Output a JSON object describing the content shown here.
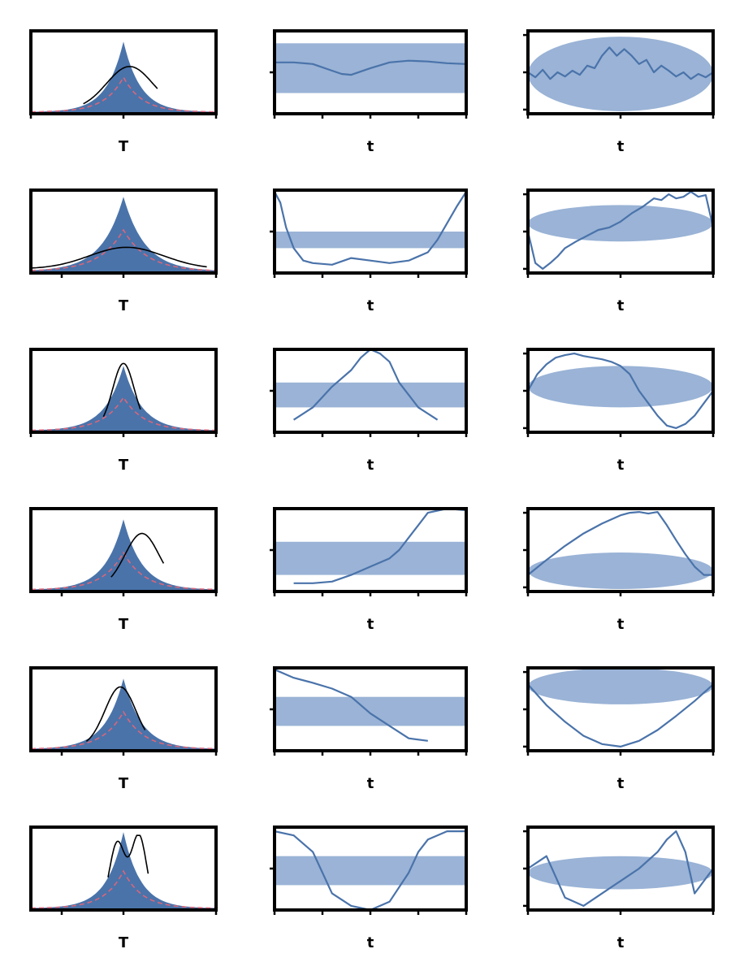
{
  "figure": {
    "row_titles": [
      "",
      "",
      "",
      "",
      "",
      ""
    ],
    "colors": {
      "pdf_fill": "#4a73aa",
      "pdf_curve": "#000000",
      "reference_dashed": "#d9667a",
      "band_fill": "#9ab3d6",
      "trace_line": "#4a73aa",
      "axes": "#000000"
    }
  },
  "chart_data": [
    {
      "type": "area",
      "row": 0,
      "col": 0,
      "xlabel": "T",
      "xlim": [
        -3,
        3
      ],
      "ylim": [
        0,
        1
      ],
      "xticks": [
        -3,
        0,
        3
      ],
      "xtick_labels": [
        "",
        "",
        ""
      ],
      "peak": 0.85,
      "spread": 0.55,
      "ref_peak": 0.42,
      "curve": {
        "center": 0.2,
        "sigma": 0.75,
        "height": 0.52,
        "range": [
          -1.3,
          1.1
        ]
      }
    },
    {
      "type": "line",
      "row": 0,
      "col": 1,
      "xlabel": "t",
      "xlim": [
        0,
        1
      ],
      "ylim": [
        0,
        1
      ],
      "xticks": [
        0,
        0.25,
        0.5,
        0.75,
        1
      ],
      "xtick_labels": [
        "",
        "",
        "",
        "",
        ""
      ],
      "band": [
        0.25,
        0.85
      ],
      "series": [
        {
          "x": [
            0,
            0.1,
            0.2,
            0.3,
            0.35,
            0.4,
            0.5,
            0.6,
            0.7,
            0.8,
            0.9,
            1
          ],
          "y": [
            0.62,
            0.62,
            0.6,
            0.52,
            0.48,
            0.47,
            0.55,
            0.62,
            0.64,
            0.63,
            0.61,
            0.6
          ]
        }
      ]
    },
    {
      "type": "line",
      "row": 0,
      "col": 2,
      "xlabel": "t",
      "xlim": [
        0,
        1
      ],
      "ylim": [
        0,
        1
      ],
      "xticks": [
        0,
        0.5,
        1
      ],
      "xtick_labels": [
        "",
        "",
        ""
      ],
      "band_ellipse": {
        "cx": 0.5,
        "cy": 0.48,
        "rx": 0.5,
        "ry": 0.45
      },
      "series": [
        {
          "x": [
            0,
            0.04,
            0.08,
            0.12,
            0.16,
            0.2,
            0.24,
            0.28,
            0.32,
            0.36,
            0.4,
            0.44,
            0.48,
            0.52,
            0.56,
            0.6,
            0.64,
            0.68,
            0.72,
            0.76,
            0.8,
            0.84,
            0.88,
            0.92,
            0.96,
            1
          ],
          "y": [
            0.5,
            0.44,
            0.53,
            0.42,
            0.5,
            0.45,
            0.52,
            0.47,
            0.58,
            0.55,
            0.7,
            0.8,
            0.7,
            0.78,
            0.7,
            0.6,
            0.65,
            0.5,
            0.58,
            0.52,
            0.45,
            0.5,
            0.42,
            0.48,
            0.44,
            0.5
          ]
        }
      ]
    },
    {
      "type": "area",
      "row": 1,
      "col": 0,
      "xlabel": "T",
      "xlim": [
        -3,
        3
      ],
      "ylim": [
        0,
        1
      ],
      "xticks": [
        -2,
        0,
        3
      ],
      "xtick_labels": [
        "",
        "",
        ""
      ],
      "peak": 0.9,
      "spread": 0.7,
      "ref_peak": 0.5,
      "curve": {
        "center": 0.1,
        "sigma": 1.2,
        "height": 0.26,
        "range": [
          -3,
          2.7
        ]
      }
    },
    {
      "type": "line",
      "row": 1,
      "col": 1,
      "xlabel": "t",
      "xlim": [
        0,
        1
      ],
      "ylim": [
        0,
        1
      ],
      "xticks": [
        0,
        0.25,
        0.5,
        0.75,
        1
      ],
      "xtick_labels": [
        "",
        "",
        "",
        "",
        ""
      ],
      "band": [
        0.3,
        0.5
      ],
      "series": [
        {
          "x": [
            0,
            0.03,
            0.06,
            0.1,
            0.15,
            0.2,
            0.3,
            0.4,
            0.5,
            0.6,
            0.7,
            0.8,
            0.85,
            0.9,
            0.95,
            1
          ],
          "y": [
            0.98,
            0.85,
            0.55,
            0.3,
            0.15,
            0.12,
            0.1,
            0.18,
            0.15,
            0.12,
            0.15,
            0.25,
            0.4,
            0.6,
            0.8,
            0.98
          ]
        }
      ]
    },
    {
      "type": "line",
      "row": 1,
      "col": 2,
      "xlabel": "t",
      "xlim": [
        0,
        1
      ],
      "ylim": [
        0,
        1
      ],
      "xticks": [
        0,
        0.5,
        1
      ],
      "xtick_labels": [
        "",
        "",
        ""
      ],
      "band_ellipse": {
        "cx": 0.5,
        "cy": 0.6,
        "rx": 0.5,
        "ry": 0.22
      },
      "series": [
        {
          "x": [
            0,
            0.04,
            0.08,
            0.12,
            0.16,
            0.2,
            0.26,
            0.32,
            0.38,
            0.44,
            0.5,
            0.56,
            0.62,
            0.68,
            0.72,
            0.76,
            0.8,
            0.84,
            0.88,
            0.92,
            0.96,
            1
          ],
          "y": [
            0.5,
            0.12,
            0.05,
            0.12,
            0.2,
            0.3,
            0.38,
            0.45,
            0.52,
            0.55,
            0.62,
            0.72,
            0.8,
            0.9,
            0.88,
            0.95,
            0.9,
            0.92,
            0.98,
            0.92,
            0.94,
            0.55
          ]
        }
      ]
    },
    {
      "type": "area",
      "row": 2,
      "col": 0,
      "xlabel": "T",
      "xlim": [
        -3,
        3
      ],
      "ylim": [
        0,
        1
      ],
      "xticks": [
        -3,
        0,
        3
      ],
      "xtick_labels": [
        "",
        "",
        ""
      ],
      "peak": 0.78,
      "spread": 0.6,
      "ref_peak": 0.4,
      "curve": {
        "center": 0,
        "sigma": 0.35,
        "height": 0.78,
        "range": [
          -0.65,
          0.55
        ]
      }
    },
    {
      "type": "line",
      "row": 2,
      "col": 1,
      "xlabel": "t",
      "xlim": [
        0,
        1
      ],
      "ylim": [
        0,
        1
      ],
      "xticks": [
        0,
        0.25,
        0.5,
        0.75,
        1
      ],
      "xtick_labels": [
        "",
        "",
        "",
        "",
        ""
      ],
      "band": [
        0.3,
        0.6
      ],
      "series": [
        {
          "x": [
            0.1,
            0.2,
            0.3,
            0.4,
            0.45,
            0.5,
            0.55,
            0.6,
            0.65,
            0.7,
            0.75,
            0.85
          ],
          "y": [
            0.15,
            0.3,
            0.55,
            0.75,
            0.9,
            1,
            0.95,
            0.85,
            0.6,
            0.45,
            0.3,
            0.15
          ]
        }
      ]
    },
    {
      "type": "line",
      "row": 2,
      "col": 2,
      "xlabel": "t",
      "xlim": [
        0,
        1
      ],
      "ylim": [
        0,
        1
      ],
      "xticks": [
        0,
        0.5,
        1
      ],
      "xtick_labels": [
        "",
        "",
        ""
      ],
      "band_ellipse": {
        "cx": 0.5,
        "cy": 0.55,
        "rx": 0.5,
        "ry": 0.25
      },
      "series": [
        {
          "x": [
            0,
            0.05,
            0.1,
            0.15,
            0.2,
            0.25,
            0.3,
            0.35,
            0.4,
            0.45,
            0.5,
            0.55,
            0.6,
            0.65,
            0.7,
            0.75,
            0.8,
            0.85,
            0.9,
            0.95,
            1
          ],
          "y": [
            0.5,
            0.7,
            0.82,
            0.9,
            0.93,
            0.95,
            0.92,
            0.9,
            0.88,
            0.85,
            0.8,
            0.7,
            0.5,
            0.35,
            0.2,
            0.08,
            0.05,
            0.1,
            0.2,
            0.35,
            0.5
          ]
        }
      ]
    },
    {
      "type": "area",
      "row": 3,
      "col": 0,
      "xlabel": "T",
      "xlim": [
        -3,
        3
      ],
      "ylim": [
        0,
        1
      ],
      "xticks": [
        -2,
        0,
        3
      ],
      "xtick_labels": [
        "",
        "",
        ""
      ],
      "peak": 0.85,
      "spread": 0.6,
      "ref_peak": 0.45,
      "curve": {
        "center": 0.6,
        "sigma": 0.55,
        "height": 0.65,
        "range": [
          -0.4,
          1.3
        ]
      }
    },
    {
      "type": "line",
      "row": 3,
      "col": 1,
      "xlabel": "t",
      "xlim": [
        0,
        1
      ],
      "ylim": [
        0,
        1
      ],
      "xticks": [
        0,
        0.25,
        0.5,
        0.75,
        1
      ],
      "xtick_labels": [
        "",
        "",
        "",
        "",
        ""
      ],
      "band": [
        0.2,
        0.6
      ],
      "series": [
        {
          "x": [
            0.1,
            0.2,
            0.3,
            0.4,
            0.5,
            0.6,
            0.65,
            0.7,
            0.75,
            0.8,
            0.9,
            1
          ],
          "y": [
            0.1,
            0.1,
            0.12,
            0.2,
            0.3,
            0.4,
            0.5,
            0.65,
            0.8,
            0.95,
            1,
            0.98
          ]
        }
      ]
    },
    {
      "type": "line",
      "row": 3,
      "col": 2,
      "xlabel": "t",
      "xlim": [
        0,
        1
      ],
      "ylim": [
        0,
        1
      ],
      "xticks": [
        0,
        0.5,
        1
      ],
      "xtick_labels": [
        "",
        "",
        ""
      ],
      "band_ellipse": {
        "cx": 0.5,
        "cy": 0.25,
        "rx": 0.5,
        "ry": 0.22
      },
      "series": [
        {
          "x": [
            0,
            0.1,
            0.2,
            0.3,
            0.4,
            0.5,
            0.55,
            0.6,
            0.65,
            0.7,
            0.75,
            0.8,
            0.85,
            0.9,
            0.95,
            1
          ],
          "y": [
            0.2,
            0.38,
            0.55,
            0.7,
            0.82,
            0.92,
            0.95,
            0.96,
            0.94,
            0.96,
            0.8,
            0.62,
            0.45,
            0.3,
            0.2,
            0.2
          ]
        }
      ]
    },
    {
      "type": "area",
      "row": 4,
      "col": 0,
      "xlabel": "T",
      "xlim": [
        -3,
        3
      ],
      "ylim": [
        0,
        1
      ],
      "xticks": [
        -2,
        0,
        3
      ],
      "xtick_labels": [
        "",
        "",
        ""
      ],
      "peak": 0.85,
      "spread": 0.6,
      "ref_peak": 0.45,
      "curve": {
        "center": -0.1,
        "sigma": 0.5,
        "height": 0.72,
        "range": [
          -1.2,
          0.7
        ]
      }
    },
    {
      "type": "line",
      "row": 4,
      "col": 1,
      "xlabel": "t",
      "xlim": [
        0,
        1
      ],
      "ylim": [
        0,
        1
      ],
      "xticks": [
        0,
        0.25,
        0.5,
        0.75,
        1
      ],
      "xtick_labels": [
        "",
        "",
        "",
        "",
        ""
      ],
      "band": [
        0.3,
        0.65
      ],
      "series": [
        {
          "x": [
            0,
            0.1,
            0.2,
            0.3,
            0.4,
            0.5,
            0.6,
            0.7,
            0.8
          ],
          "y": [
            0.98,
            0.88,
            0.82,
            0.75,
            0.65,
            0.45,
            0.3,
            0.15,
            0.12
          ]
        }
      ]
    },
    {
      "type": "line",
      "row": 4,
      "col": 2,
      "xlabel": "t",
      "xlim": [
        0,
        1
      ],
      "ylim": [
        0,
        1
      ],
      "xticks": [
        0,
        0.5,
        1
      ],
      "xtick_labels": [
        "",
        "",
        ""
      ],
      "band_ellipse": {
        "cx": 0.5,
        "cy": 0.78,
        "rx": 0.5,
        "ry": 0.22
      },
      "series": [
        {
          "x": [
            0,
            0.1,
            0.2,
            0.3,
            0.4,
            0.5,
            0.6,
            0.7,
            0.8,
            0.9,
            1
          ],
          "y": [
            0.8,
            0.55,
            0.35,
            0.18,
            0.08,
            0.05,
            0.12,
            0.25,
            0.42,
            0.6,
            0.8
          ]
        }
      ]
    },
    {
      "type": "area",
      "row": 5,
      "col": 0,
      "xlabel": "T",
      "xlim": [
        -3,
        3
      ],
      "ylim": [
        0,
        1
      ],
      "xticks": [
        -2,
        0,
        3
      ],
      "xtick_labels": [
        "",
        "",
        ""
      ],
      "peak": 0.92,
      "spread": 0.55,
      "ref_peak": 0.45,
      "curve": {
        "center": 0.15,
        "sigma": 0.25,
        "height": 0.9,
        "range": [
          -0.5,
          0.8
        ]
      },
      "curve_shape": "bimodal"
    },
    {
      "type": "line",
      "row": 5,
      "col": 1,
      "xlabel": "t",
      "xlim": [
        0,
        1
      ],
      "ylim": [
        0,
        1
      ],
      "xticks": [
        0,
        0.25,
        0.5,
        0.75,
        1
      ],
      "xtick_labels": [
        "",
        "",
        "",
        "",
        ""
      ],
      "band": [
        0.3,
        0.65
      ],
      "series": [
        {
          "x": [
            0,
            0.1,
            0.2,
            0.25,
            0.3,
            0.4,
            0.5,
            0.6,
            0.7,
            0.75,
            0.8,
            0.9,
            1
          ],
          "y": [
            0.95,
            0.9,
            0.7,
            0.45,
            0.2,
            0.05,
            0,
            0.1,
            0.45,
            0.7,
            0.85,
            0.95,
            0.95
          ]
        }
      ]
    },
    {
      "type": "line",
      "row": 5,
      "col": 2,
      "xlabel": "t",
      "xlim": [
        0,
        1
      ],
      "ylim": [
        0,
        1
      ],
      "xticks": [
        0,
        0.5,
        1
      ],
      "xtick_labels": [
        "",
        "",
        ""
      ],
      "band_ellipse": {
        "cx": 0.5,
        "cy": 0.45,
        "rx": 0.5,
        "ry": 0.2
      },
      "series": [
        {
          "x": [
            0,
            0.1,
            0.15,
            0.2,
            0.3,
            0.4,
            0.5,
            0.6,
            0.7,
            0.75,
            0.8,
            0.85,
            0.9,
            1
          ],
          "y": [
            0.5,
            0.65,
            0.4,
            0.15,
            0.05,
            0.2,
            0.35,
            0.5,
            0.7,
            0.85,
            0.95,
            0.7,
            0.2,
            0.5
          ]
        }
      ]
    }
  ]
}
